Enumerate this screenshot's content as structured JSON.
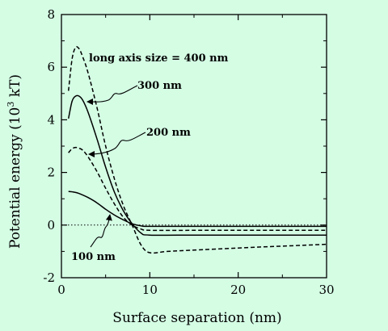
{
  "chart_data": {
    "type": "line",
    "xlabel": "Surface separation (nm)",
    "ylabel_main": "Potential energy (10",
    "ylabel_sup": "3",
    "ylabel_unit": " kT)",
    "xlim": [
      0,
      30
    ],
    "ylim": [
      -2,
      8
    ],
    "xticks": [
      0,
      10,
      20,
      30
    ],
    "yticks": [
      -2,
      0,
      2,
      4,
      6,
      8
    ],
    "xtick_labels": [
      "0",
      "10",
      "20",
      "30"
    ],
    "ytick_labels": [
      "-2",
      "0",
      "2",
      "4",
      "6",
      "8"
    ],
    "zero_line": "dotted",
    "series": [
      {
        "label": "long axis size = 400 nm",
        "style": "dashed",
        "x": [
          0.8,
          1.2,
          1.6,
          2.0,
          2.4,
          3.0,
          4.0,
          5.0,
          6.0,
          7.0,
          8.0,
          9.0,
          10.0,
          12.0,
          15.0,
          20.0,
          25.0,
          30.0
        ],
        "y": [
          5.1,
          6.3,
          6.75,
          6.7,
          6.4,
          5.8,
          4.5,
          3.0,
          1.75,
          0.75,
          0.0,
          -0.75,
          -1.05,
          -1.0,
          -0.95,
          -0.87,
          -0.8,
          -0.73
        ]
      },
      {
        "label": "300 nm",
        "style": "solid",
        "x": [
          0.8,
          1.2,
          1.6,
          2.0,
          2.4,
          3.0,
          4.0,
          5.0,
          6.0,
          7.0,
          8.0,
          9.0,
          10.0,
          15.0,
          20.0,
          25.0,
          30.0
        ],
        "y": [
          4.05,
          4.7,
          4.9,
          4.9,
          4.75,
          4.3,
          3.3,
          2.2,
          1.25,
          0.55,
          0.05,
          -0.3,
          -0.38,
          -0.38,
          -0.38,
          -0.38,
          -0.38
        ]
      },
      {
        "label": "200 nm",
        "style": "dashed",
        "x": [
          0.8,
          1.2,
          1.6,
          2.0,
          2.4,
          3.0,
          4.0,
          5.0,
          6.0,
          7.0,
          8.0,
          9.0,
          10.0,
          15.0,
          20.0,
          25.0,
          30.0
        ],
        "y": [
          2.75,
          2.9,
          2.95,
          2.92,
          2.85,
          2.6,
          2.05,
          1.4,
          0.8,
          0.3,
          0.0,
          -0.15,
          -0.2,
          -0.2,
          -0.2,
          -0.2,
          -0.2
        ]
      },
      {
        "label": "100 nm",
        "style": "solid",
        "x": [
          0.8,
          1.5,
          2.0,
          3.0,
          4.0,
          5.0,
          6.0,
          7.0,
          8.0,
          9.0,
          10.0,
          15.0,
          20.0,
          25.0,
          30.0
        ],
        "y": [
          1.28,
          1.25,
          1.2,
          1.05,
          0.85,
          0.6,
          0.38,
          0.2,
          0.05,
          -0.03,
          -0.05,
          -0.05,
          -0.05,
          -0.05,
          -0.05
        ]
      }
    ]
  }
}
